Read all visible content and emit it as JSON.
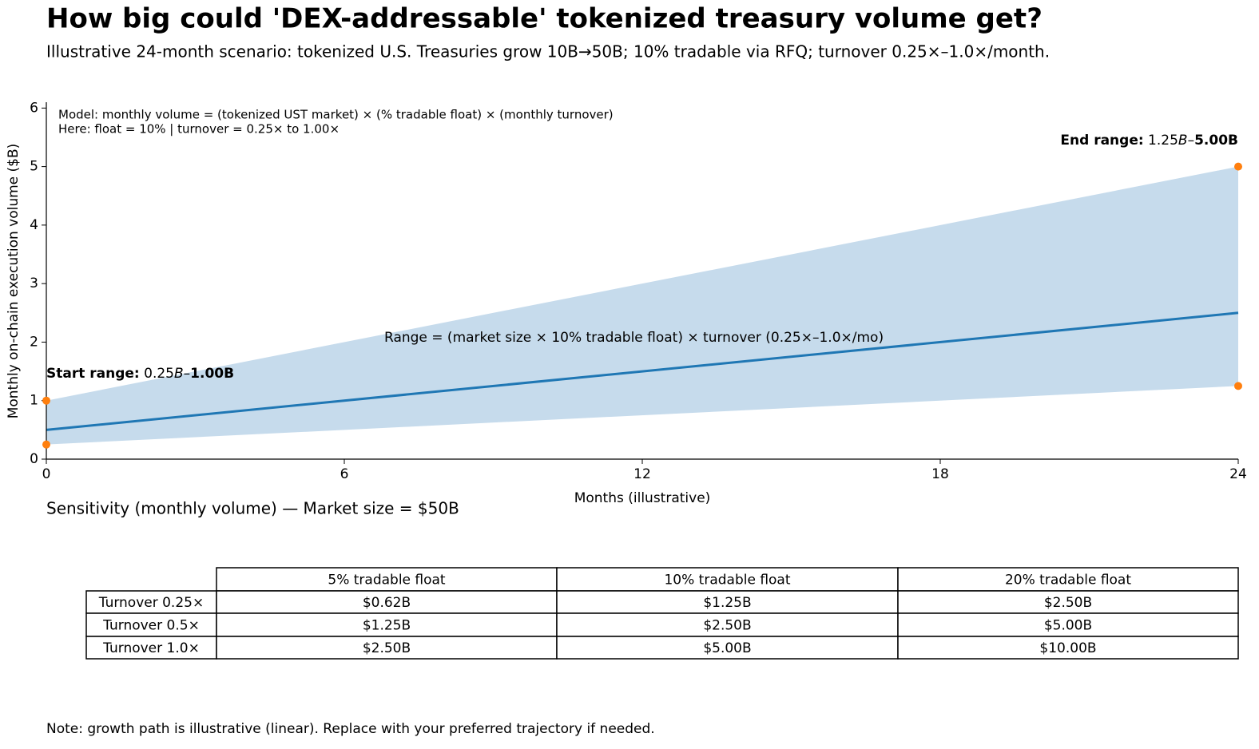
{
  "chart_data": {
    "type": "band-line",
    "title": "How big could 'DEX-addressable' tokenized treasury volume get?",
    "subtitle": "Illustrative 24-month scenario: tokenized U.S. Treasuries grow 10B→50B; 10% tradable via RFQ; turnover 0.25×–1.0×/month.",
    "x_label": "Months (illustrative)",
    "y_label": "Monthly on-chain execution volume ($B)",
    "x": [
      0,
      24
    ],
    "series": [
      {
        "values": [
          0.5,
          2.5
        ],
        "color": "#1f77b4"
      }
    ],
    "band": {
      "lower": [
        0.25,
        1.25
      ],
      "upper": [
        1.0,
        5.0
      ],
      "color": "#c6dbec"
    },
    "points": {
      "x": [
        0,
        0,
        24,
        24
      ],
      "y": [
        0.25,
        1.0,
        1.25,
        5.0
      ],
      "color": "#ff7f0e"
    },
    "xlim": [
      0,
      24
    ],
    "xticks": [
      0,
      6,
      12,
      18,
      24
    ],
    "ylim": [
      0,
      6.1
    ],
    "yticks": [
      0,
      1,
      2,
      3,
      4,
      5,
      6
    ],
    "model_note": [
      "Model: monthly volume = (tokenized UST market) × (% tradable float) × (monthly turnover)",
      "Here: float = 10% | turnover = 0.25× to 1.00×"
    ],
    "range_note": "Range = (market size × 10% tradable float) × turnover (0.25×–1.0×/mo)",
    "start_annotation": [
      {
        "text": "Start range:",
        "bold": true
      },
      {
        "text": " 0.25"
      },
      {
        "text": "B",
        "italic": true
      },
      {
        "text": "–"
      },
      {
        "text": "1.00B",
        "bold": true
      }
    ],
    "end_annotation": [
      {
        "text": "End range:",
        "bold": true
      },
      {
        "text": " 1.25"
      },
      {
        "text": "B",
        "italic": true
      },
      {
        "text": "–"
      },
      {
        "text": "5.00B",
        "bold": true
      }
    ]
  },
  "table": {
    "title": "Sensitivity (monthly volume) — Market size = $50B",
    "columns": [
      "5% tradable float",
      "10% tradable float",
      "20% tradable float"
    ],
    "rows": [
      [
        "Turnover 0.25×",
        "$0.62B",
        "$1.25B",
        "$2.50B"
      ],
      [
        "Turnover 0.5×",
        "$1.25B",
        "$2.50B",
        "$5.00B"
      ],
      [
        "Turnover 1.0×",
        "$2.50B",
        "$5.00B",
        "$10.00B"
      ]
    ]
  },
  "note": "Note: growth path is illustrative (linear). Replace with your preferred trajectory if needed."
}
